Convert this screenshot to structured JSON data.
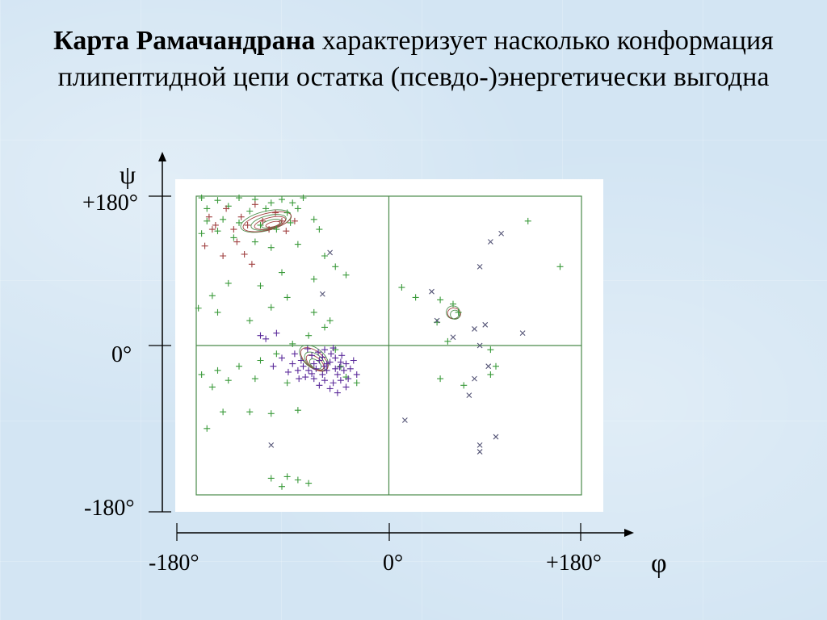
{
  "title": {
    "bold": "Карта Рамачандрана",
    "rest": " характеризует насколько конформация плипептидной цепи остатка (псевдо-)энергетически выгодна"
  },
  "axes": {
    "y_symbol": "ψ",
    "x_symbol": "φ",
    "y_ticks": [
      "+180°",
      "0°",
      "-180°"
    ],
    "x_ticks": [
      "-180°",
      "0°",
      "+180°"
    ]
  },
  "colors": {
    "plot_frame": "#4a8a4a",
    "green": "#3a9a3a",
    "brown": "#a04040",
    "purple": "#5a2a9a",
    "gray": "#555577",
    "contour": "#4f8f4f"
  },
  "chart_data": {
    "type": "scatter",
    "title": "",
    "xlabel": "φ",
    "ylabel": "ψ",
    "xlim": [
      -180,
      180
    ],
    "ylim": [
      -180,
      180
    ],
    "grid": "quadrant lines at φ=0 and ψ=0",
    "contours": [
      {
        "region": "beta",
        "center": [
          -115,
          150
        ],
        "levels": 6
      },
      {
        "region": "alpha",
        "center": [
          -70,
          -15
        ],
        "levels": 5
      },
      {
        "region": "left-handed",
        "center": [
          60,
          40
        ],
        "levels": 3
      }
    ],
    "series": [
      {
        "marker": "plus",
        "color": "green",
        "points": [
          [
            -175,
            178
          ],
          [
            -160,
            175
          ],
          [
            -140,
            178
          ],
          [
            -125,
            176
          ],
          [
            -110,
            172
          ],
          [
            -100,
            176
          ],
          [
            -90,
            172
          ],
          [
            -80,
            178
          ],
          [
            -170,
            165
          ],
          [
            -150,
            168
          ],
          [
            -130,
            162
          ],
          [
            -115,
            165
          ],
          [
            -95,
            160
          ],
          [
            -85,
            165
          ],
          [
            -170,
            150
          ],
          [
            -155,
            152
          ],
          [
            -140,
            148
          ],
          [
            -120,
            145
          ],
          [
            -105,
            140
          ],
          [
            -92,
            148
          ],
          [
            -70,
            152
          ],
          [
            -65,
            140
          ],
          [
            -175,
            135
          ],
          [
            -160,
            138
          ],
          [
            -145,
            130
          ],
          [
            -125,
            125
          ],
          [
            -110,
            118
          ],
          [
            -85,
            122
          ],
          [
            -60,
            108
          ],
          [
            -50,
            95
          ],
          [
            -40,
            85
          ],
          [
            -70,
            80
          ],
          [
            -100,
            88
          ],
          [
            -120,
            72
          ],
          [
            -150,
            75
          ],
          [
            -165,
            60
          ],
          [
            -178,
            45
          ],
          [
            -160,
            40
          ],
          [
            -95,
            58
          ],
          [
            -110,
            46
          ],
          [
            -130,
            30
          ],
          [
            -70,
            40
          ],
          [
            -55,
            30
          ],
          [
            -60,
            22
          ],
          [
            -75,
            12
          ],
          [
            -90,
            2
          ],
          [
            -105,
            -10
          ],
          [
            -120,
            -18
          ],
          [
            -140,
            -25
          ],
          [
            -160,
            -30
          ],
          [
            -175,
            -35
          ],
          [
            -150,
            -42
          ],
          [
            -165,
            -50
          ],
          [
            -125,
            -40
          ],
          [
            -95,
            -45
          ],
          [
            -40,
            -38
          ],
          [
            -30,
            -45
          ],
          [
            -50,
            -5
          ],
          [
            -45,
            -25
          ],
          [
            -155,
            -80
          ],
          [
            -130,
            -80
          ],
          [
            -110,
            -82
          ],
          [
            -85,
            -78
          ],
          [
            -170,
            -100
          ],
          [
            -110,
            -160
          ],
          [
            -95,
            -158
          ],
          [
            -85,
            -162
          ],
          [
            -75,
            -166
          ],
          [
            -100,
            -170
          ],
          [
            12,
            70
          ],
          [
            25,
            58
          ],
          [
            48,
            55
          ],
          [
            60,
            50
          ],
          [
            65,
            40
          ],
          [
            45,
            28
          ],
          [
            55,
            5
          ],
          [
            95,
            -5
          ],
          [
            100,
            -25
          ],
          [
            48,
            -40
          ],
          [
            70,
            -48
          ],
          [
            95,
            -35
          ],
          [
            130,
            150
          ],
          [
            160,
            95
          ]
        ]
      },
      {
        "marker": "plus",
        "color": "brown",
        "points": [
          [
            -168,
            155
          ],
          [
            -162,
            145
          ],
          [
            -152,
            165
          ],
          [
            -145,
            140
          ],
          [
            -138,
            155
          ],
          [
            -132,
            145
          ],
          [
            -125,
            170
          ],
          [
            -118,
            150
          ],
          [
            -112,
            140
          ],
          [
            -106,
            160
          ],
          [
            -100,
            150
          ],
          [
            -96,
            138
          ],
          [
            -88,
            150
          ],
          [
            -142,
            125
          ],
          [
            -135,
            110
          ],
          [
            -128,
            98
          ],
          [
            -155,
            108
          ],
          [
            -165,
            140
          ],
          [
            -172,
            120
          ]
        ]
      },
      {
        "marker": "plus",
        "color": "purple",
        "points": [
          [
            -50,
            -15
          ],
          [
            -55,
            -20
          ],
          [
            -60,
            -25
          ],
          [
            -65,
            -18
          ],
          [
            -70,
            -22
          ],
          [
            -58,
            -30
          ],
          [
            -50,
            -28
          ],
          [
            -45,
            -20
          ],
          [
            -40,
            -22
          ],
          [
            -62,
            -35
          ],
          [
            -75,
            -30
          ],
          [
            -80,
            -25
          ],
          [
            -72,
            -12
          ],
          [
            -66,
            -8
          ],
          [
            -54,
            -10
          ],
          [
            -48,
            -35
          ],
          [
            -42,
            -30
          ],
          [
            -36,
            -28
          ],
          [
            -85,
            -30
          ],
          [
            -78,
            -38
          ],
          [
            -70,
            -40
          ],
          [
            -60,
            -42
          ],
          [
            -52,
            -45
          ],
          [
            -45,
            -42
          ],
          [
            -38,
            -40
          ],
          [
            -90,
            -22
          ],
          [
            -94,
            -32
          ],
          [
            -100,
            -15
          ],
          [
            -108,
            -25
          ],
          [
            -115,
            8
          ],
          [
            -105,
            15
          ],
          [
            -120,
            12
          ],
          [
            -60,
            -5
          ],
          [
            -52,
            -3
          ],
          [
            -44,
            -12
          ],
          [
            -33,
            -18
          ],
          [
            -30,
            -35
          ],
          [
            -65,
            -48
          ],
          [
            -55,
            -52
          ],
          [
            -40,
            -50
          ],
          [
            -48,
            -57
          ],
          [
            -88,
            -10
          ],
          [
            -82,
            -18
          ],
          [
            -68,
            -28
          ],
          [
            -58,
            -22
          ],
          [
            -46,
            -26
          ],
          [
            -72,
            -34
          ],
          [
            -62,
            -14
          ],
          [
            -76,
            -4
          ],
          [
            -84,
            -40
          ]
        ]
      },
      {
        "marker": "cross",
        "color": "gray",
        "points": [
          [
            105,
            135
          ],
          [
            95,
            125
          ],
          [
            85,
            95
          ],
          [
            40,
            65
          ],
          [
            45,
            30
          ],
          [
            60,
            10
          ],
          [
            80,
            20
          ],
          [
            90,
            25
          ],
          [
            85,
            0
          ],
          [
            93,
            -25
          ],
          [
            80,
            -40
          ],
          [
            75,
            -60
          ],
          [
            15,
            -90
          ],
          [
            100,
            -110
          ],
          [
            85,
            -120
          ],
          [
            -110,
            -120
          ],
          [
            85,
            -128
          ],
          [
            125,
            15
          ],
          [
            -55,
            112
          ],
          [
            -62,
            62
          ]
        ]
      }
    ]
  }
}
